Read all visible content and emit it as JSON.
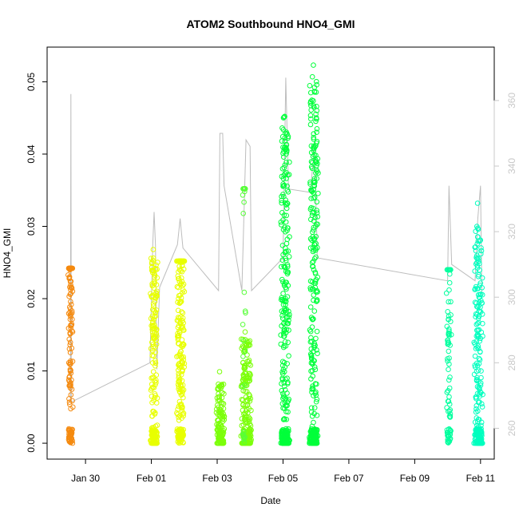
{
  "chart_data": {
    "type": "scatter",
    "title": "ATOM2 Southbound HNO4_GMI",
    "xlabel": "Date",
    "ylabel": "HNO4_GMI",
    "x_range": [
      "2017-01-28T20:00",
      "2017-02-11T10:00"
    ],
    "ylim": [
      -0.0022,
      0.0548
    ],
    "y_ticks": [
      0.0,
      0.01,
      0.02,
      0.03,
      0.04,
      0.05
    ],
    "y_tick_labels": [
      "0.00",
      "0.01",
      "0.02",
      "0.03",
      "0.04",
      "0.05"
    ],
    "x_ticks": [
      "2017-01-30",
      "2017-02-01",
      "2017-02-03",
      "2017-02-05",
      "2017-02-07",
      "2017-02-09",
      "2017-02-11"
    ],
    "x_tick_labels": [
      "Jan 30",
      "Feb 01",
      "Feb 03",
      "Feb 05",
      "Feb 07",
      "Feb 09",
      "Feb 11"
    ],
    "secondary_axis": {
      "side": "right",
      "color": "#c8c8c8",
      "ylim": [
        250.6,
        376.3
      ],
      "ticks": [
        260,
        280,
        300,
        320,
        340,
        360
      ],
      "tick_labels": [
        "260",
        "280",
        "300",
        "320",
        "340",
        "360"
      ]
    },
    "grid": false,
    "legend": "none",
    "series": [
      {
        "color": "#f58a0f",
        "segments": [
          {
            "t0": "2017-01-29T12:00",
            "t1": "2017-01-29T14:00",
            "n": 150,
            "max": 0.0242,
            "mean": 0.018
          }
        ]
      },
      {
        "color": "#e8ff00",
        "segments": [
          {
            "t0": "2017-02-01T00:00",
            "t1": "2017-02-01T04:00",
            "n": 220,
            "max": 0.0268,
            "mean": 0.011
          },
          {
            "t0": "2017-02-01T19:00",
            "t1": "2017-02-01T23:30",
            "n": 240,
            "max": 0.0252,
            "mean": 0.017
          }
        ]
      },
      {
        "color": "#7cff0a",
        "segments": [
          {
            "t0": "2017-02-03T00:00",
            "t1": "2017-02-03T05:00",
            "n": 140,
            "max": 0.0099,
            "mean": 0.003
          },
          {
            "t0": "2017-02-03T18:00",
            "t1": "2017-02-04T00:30",
            "n": 200,
            "max": 0.0154,
            "mean": 0.006
          }
        ]
      },
      {
        "color": "#57ff38",
        "segments": [
          {
            "t0": "2017-02-03T19:00",
            "t1": "2017-02-03T20:00",
            "n": 30,
            "max": 0.0352,
            "mean": 0.025
          }
        ]
      },
      {
        "color": "#00ff3a",
        "segments": [
          {
            "t0": "2017-02-04T23:00",
            "t1": "2017-02-05T04:00",
            "n": 300,
            "max": 0.0452,
            "mean": 0.021
          },
          {
            "t0": "2017-02-05T20:00",
            "t1": "2017-02-06T01:00",
            "n": 320,
            "max": 0.0523,
            "mean": 0.022
          }
        ]
      },
      {
        "color": "#00ff9e",
        "segments": [
          {
            "t0": "2017-02-10T00:00",
            "t1": "2017-02-10T02:00",
            "n": 90,
            "max": 0.024,
            "mean": 0.016
          }
        ]
      },
      {
        "color": "#00ffbf",
        "segments": [
          {
            "t0": "2017-02-10T20:00",
            "t1": "2017-02-11T01:00",
            "n": 240,
            "max": 0.0332,
            "mean": 0.012
          }
        ]
      }
    ],
    "secondary_series": {
      "color": "#bdbdbd",
      "points": [
        [
          "2017-01-29T12:00",
          268
        ],
        [
          "2017-01-29T13:00",
          268
        ],
        [
          "2017-01-29T13:20",
          362
        ],
        [
          "2017-01-29T13:40",
          268
        ],
        [
          "2017-01-31T23:00",
          280
        ],
        [
          "2017-02-01T01:00",
          316
        ],
        [
          "2017-02-01T02:00",
          326
        ],
        [
          "2017-02-01T03:00",
          316
        ],
        [
          "2017-02-01T04:00",
          278
        ],
        [
          "2017-02-01T06:00",
          303
        ],
        [
          "2017-02-01T19:00",
          316
        ],
        [
          "2017-02-01T21:00",
          324
        ],
        [
          "2017-02-01T23:00",
          315
        ],
        [
          "2017-02-03T01:00",
          302
        ],
        [
          "2017-02-03T02:00",
          350
        ],
        [
          "2017-02-03T04:00",
          350
        ],
        [
          "2017-02-03T05:00",
          334
        ],
        [
          "2017-02-03T18:00",
          302
        ],
        [
          "2017-02-03T21:00",
          348
        ],
        [
          "2017-02-04T00:00",
          346
        ],
        [
          "2017-02-04T01:00",
          302
        ],
        [
          "2017-02-05T00:00",
          312
        ],
        [
          "2017-02-05T02:00",
          367
        ],
        [
          "2017-02-05T04:00",
          333
        ],
        [
          "2017-02-05T20:00",
          332
        ],
        [
          "2017-02-05T23:00",
          347
        ],
        [
          "2017-02-06T01:00",
          312
        ],
        [
          "2017-02-10T00:00",
          305
        ],
        [
          "2017-02-10T01:00",
          334
        ],
        [
          "2017-02-10T03:00",
          310
        ],
        [
          "2017-02-10T20:00",
          305
        ],
        [
          "2017-02-10T22:00",
          324
        ],
        [
          "2017-02-11T00:00",
          334
        ],
        [
          "2017-02-11T01:00",
          300
        ]
      ]
    }
  }
}
